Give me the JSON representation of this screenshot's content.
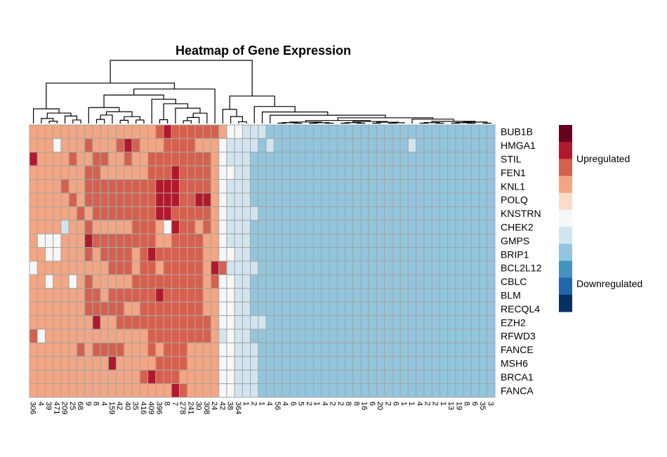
{
  "chart_data": {
    "type": "heatmap",
    "title": "Heatmap of Gene Expression",
    "rows": [
      "BUB1B",
      "HMGA1",
      "STIL",
      "FEN1",
      "KNL1",
      "POLQ",
      "KNSTRN",
      "CHEK2",
      "GMPS",
      "BRIP1",
      "BCL2L12",
      "CBLC",
      "BLM",
      "RECQL4",
      "EZH2",
      "RFWD3",
      "FANCE",
      "MSH6",
      "BRCA1",
      "FANCA"
    ],
    "columns": [
      "306",
      "4",
      "39",
      "471",
      "209",
      "25",
      "68",
      "9",
      "8",
      "4",
      "159",
      "42",
      "40",
      "35",
      "416",
      "409",
      "396",
      "8",
      "7",
      "278",
      "241",
      "30",
      "308",
      "24",
      "42",
      "38",
      "364",
      "1",
      "2",
      "1",
      "4",
      "56",
      "4",
      "6",
      "5",
      "2",
      "1",
      "4",
      "2",
      "2",
      "8",
      "8",
      "16",
      "6",
      "20",
      "2",
      "6",
      "1",
      "1",
      "4",
      "2",
      "2",
      "1",
      "13",
      "19",
      "8",
      "6",
      "35",
      "3"
    ],
    "values": [
      [
        3,
        3,
        3,
        3,
        3,
        3,
        3,
        3,
        3,
        3,
        3,
        3,
        3,
        3,
        3,
        3,
        4,
        5,
        4,
        4,
        4,
        4,
        4,
        4,
        3,
        2,
        2,
        1,
        1,
        1,
        0,
        0,
        0,
        0,
        0,
        0,
        0,
        0,
        0,
        0,
        0,
        0,
        0,
        0,
        0,
        0,
        0,
        0,
        0,
        0,
        0,
        0,
        0,
        0,
        0,
        0,
        0,
        0,
        0
      ],
      [
        3,
        3,
        3,
        2,
        3,
        3,
        3,
        4,
        3,
        3,
        3,
        4,
        5,
        4,
        3,
        3,
        3,
        4,
        4,
        4,
        4,
        3,
        3,
        3,
        2,
        1,
        1,
        1,
        1,
        0,
        1,
        0,
        0,
        0,
        0,
        0,
        0,
        0,
        0,
        0,
        0,
        0,
        0,
        0,
        0,
        0,
        0,
        0,
        1,
        0,
        0,
        0,
        0,
        0,
        0,
        0,
        0,
        0,
        0
      ],
      [
        5,
        3,
        3,
        3,
        3,
        4,
        3,
        3,
        4,
        4,
        3,
        3,
        4,
        3,
        3,
        4,
        4,
        4,
        4,
        4,
        4,
        4,
        4,
        3,
        2,
        1,
        1,
        1,
        0,
        0,
        0,
        0,
        0,
        0,
        0,
        0,
        0,
        0,
        0,
        0,
        0,
        0,
        0,
        0,
        0,
        0,
        0,
        0,
        0,
        0,
        0,
        0,
        0,
        0,
        0,
        0,
        0,
        0,
        0
      ],
      [
        3,
        3,
        3,
        3,
        3,
        3,
        3,
        4,
        4,
        3,
        3,
        3,
        3,
        3,
        3,
        4,
        4,
        4,
        5,
        4,
        4,
        4,
        4,
        3,
        2,
        2,
        1,
        1,
        0,
        0,
        0,
        0,
        0,
        0,
        0,
        0,
        0,
        0,
        0,
        0,
        0,
        0,
        0,
        0,
        0,
        0,
        0,
        0,
        0,
        0,
        0,
        0,
        0,
        0,
        0,
        0,
        0,
        0,
        0
      ],
      [
        3,
        3,
        3,
        3,
        4,
        3,
        3,
        4,
        4,
        4,
        4,
        4,
        4,
        4,
        4,
        4,
        5,
        5,
        5,
        4,
        4,
        4,
        4,
        3,
        2,
        1,
        1,
        1,
        0,
        0,
        0,
        0,
        0,
        0,
        0,
        0,
        0,
        0,
        0,
        0,
        0,
        0,
        0,
        0,
        0,
        0,
        0,
        0,
        0,
        0,
        0,
        0,
        0,
        0,
        0,
        0,
        0,
        0,
        0
      ],
      [
        3,
        3,
        3,
        3,
        3,
        4,
        3,
        4,
        4,
        4,
        4,
        4,
        4,
        4,
        4,
        4,
        5,
        5,
        5,
        4,
        4,
        5,
        5,
        3,
        2,
        1,
        1,
        1,
        0,
        0,
        0,
        0,
        0,
        0,
        0,
        0,
        0,
        0,
        0,
        0,
        0,
        0,
        0,
        0,
        0,
        0,
        0,
        0,
        0,
        0,
        0,
        0,
        0,
        0,
        0,
        0,
        0,
        0,
        0
      ],
      [
        3,
        3,
        3,
        3,
        3,
        3,
        4,
        3,
        4,
        4,
        4,
        4,
        4,
        4,
        4,
        4,
        5,
        5,
        4,
        4,
        4,
        4,
        4,
        3,
        2,
        1,
        1,
        1,
        1,
        0,
        0,
        0,
        0,
        0,
        0,
        0,
        0,
        0,
        0,
        0,
        0,
        0,
        0,
        0,
        0,
        0,
        0,
        0,
        0,
        0,
        0,
        0,
        0,
        0,
        0,
        0,
        0,
        0,
        0
      ],
      [
        3,
        3,
        3,
        3,
        1,
        3,
        3,
        4,
        3,
        3,
        3,
        3,
        3,
        4,
        4,
        4,
        3,
        2,
        5,
        4,
        4,
        3,
        4,
        3,
        2,
        1,
        1,
        1,
        0,
        0,
        0,
        0,
        0,
        0,
        0,
        0,
        0,
        0,
        0,
        0,
        0,
        0,
        0,
        0,
        0,
        0,
        0,
        0,
        0,
        0,
        0,
        0,
        0,
        0,
        0,
        0,
        0,
        0,
        0
      ],
      [
        3,
        2,
        2,
        2,
        3,
        3,
        3,
        5,
        4,
        4,
        4,
        4,
        4,
        4,
        4,
        4,
        3,
        3,
        4,
        4,
        4,
        4,
        3,
        3,
        2,
        1,
        1,
        1,
        0,
        0,
        0,
        0,
        0,
        0,
        0,
        0,
        0,
        0,
        0,
        0,
        0,
        0,
        0,
        0,
        0,
        0,
        0,
        0,
        0,
        0,
        0,
        0,
        0,
        0,
        0,
        0,
        0,
        0,
        0
      ],
      [
        3,
        3,
        2,
        2,
        3,
        3,
        3,
        4,
        3,
        4,
        4,
        4,
        4,
        3,
        4,
        5,
        4,
        4,
        4,
        4,
        4,
        4,
        3,
        3,
        2,
        2,
        1,
        1,
        0,
        0,
        0,
        0,
        0,
        0,
        0,
        0,
        0,
        0,
        0,
        0,
        0,
        0,
        0,
        0,
        0,
        0,
        0,
        0,
        0,
        0,
        0,
        0,
        0,
        0,
        0,
        0,
        0,
        0,
        0
      ],
      [
        2,
        3,
        3,
        3,
        3,
        3,
        3,
        3,
        3,
        3,
        4,
        4,
        4,
        3,
        4,
        4,
        3,
        4,
        4,
        4,
        4,
        4,
        3,
        5,
        4,
        1,
        1,
        1,
        1,
        0,
        0,
        0,
        0,
        0,
        0,
        0,
        0,
        0,
        0,
        0,
        0,
        0,
        0,
        0,
        0,
        0,
        0,
        0,
        0,
        0,
        0,
        0,
        0,
        0,
        0,
        0,
        0,
        0,
        0
      ],
      [
        3,
        3,
        2,
        3,
        3,
        2,
        3,
        4,
        3,
        3,
        3,
        3,
        3,
        4,
        4,
        4,
        4,
        4,
        4,
        4,
        4,
        4,
        3,
        4,
        2,
        2,
        1,
        1,
        0,
        0,
        0,
        0,
        0,
        0,
        0,
        0,
        0,
        0,
        0,
        0,
        0,
        0,
        0,
        0,
        0,
        0,
        0,
        0,
        0,
        0,
        0,
        0,
        0,
        0,
        0,
        0,
        0,
        0,
        0
      ],
      [
        3,
        3,
        3,
        3,
        3,
        3,
        3,
        4,
        4,
        3,
        4,
        4,
        4,
        4,
        4,
        4,
        5,
        4,
        4,
        4,
        4,
        4,
        3,
        3,
        2,
        2,
        1,
        1,
        0,
        0,
        0,
        0,
        0,
        0,
        0,
        0,
        0,
        0,
        0,
        0,
        0,
        0,
        0,
        0,
        0,
        0,
        0,
        0,
        0,
        0,
        0,
        0,
        0,
        0,
        0,
        0,
        0,
        0,
        0
      ],
      [
        3,
        3,
        3,
        3,
        3,
        3,
        3,
        4,
        4,
        4,
        4,
        4,
        3,
        3,
        4,
        4,
        4,
        4,
        4,
        4,
        4,
        4,
        3,
        3,
        2,
        2,
        1,
        1,
        0,
        0,
        0,
        0,
        0,
        0,
        0,
        0,
        0,
        0,
        0,
        0,
        0,
        0,
        0,
        0,
        0,
        0,
        0,
        0,
        0,
        0,
        0,
        0,
        0,
        0,
        0,
        0,
        0,
        0,
        0
      ],
      [
        3,
        3,
        3,
        3,
        3,
        3,
        3,
        3,
        5,
        3,
        3,
        4,
        4,
        4,
        4,
        4,
        4,
        4,
        4,
        4,
        4,
        4,
        4,
        3,
        2,
        2,
        1,
        1,
        1,
        1,
        0,
        0,
        0,
        0,
        0,
        0,
        0,
        0,
        0,
        0,
        0,
        0,
        0,
        0,
        0,
        0,
        0,
        0,
        0,
        0,
        0,
        0,
        0,
        0,
        0,
        0,
        0,
        0,
        0
      ],
      [
        4,
        2,
        3,
        3,
        3,
        3,
        3,
        3,
        3,
        3,
        3,
        3,
        3,
        3,
        3,
        4,
        4,
        4,
        4,
        4,
        4,
        4,
        4,
        3,
        1,
        2,
        1,
        1,
        0,
        0,
        0,
        0,
        0,
        0,
        0,
        0,
        0,
        0,
        0,
        0,
        0,
        0,
        0,
        0,
        0,
        0,
        0,
        0,
        0,
        0,
        0,
        0,
        0,
        0,
        0,
        0,
        0,
        0,
        0
      ],
      [
        3,
        3,
        3,
        3,
        3,
        3,
        4,
        3,
        4,
        4,
        4,
        4,
        3,
        3,
        3,
        4,
        3,
        4,
        4,
        4,
        3,
        3,
        3,
        3,
        2,
        2,
        1,
        1,
        1,
        0,
        0,
        0,
        0,
        0,
        0,
        0,
        0,
        0,
        0,
        0,
        0,
        0,
        0,
        0,
        0,
        0,
        0,
        0,
        0,
        0,
        0,
        0,
        0,
        0,
        0,
        0,
        0,
        0,
        0
      ],
      [
        3,
        3,
        3,
        3,
        3,
        3,
        3,
        3,
        3,
        3,
        5,
        3,
        3,
        3,
        3,
        3,
        4,
        4,
        4,
        4,
        3,
        3,
        3,
        3,
        2,
        2,
        1,
        1,
        1,
        0,
        0,
        0,
        0,
        0,
        0,
        0,
        0,
        0,
        0,
        0,
        0,
        0,
        0,
        0,
        0,
        0,
        0,
        0,
        0,
        0,
        0,
        0,
        0,
        0,
        0,
        0,
        0,
        0,
        0
      ],
      [
        3,
        3,
        3,
        3,
        3,
        3,
        3,
        3,
        3,
        3,
        3,
        3,
        3,
        3,
        4,
        5,
        4,
        4,
        4,
        3,
        3,
        3,
        3,
        3,
        2,
        2,
        1,
        1,
        1,
        0,
        0,
        0,
        0,
        0,
        0,
        0,
        0,
        0,
        0,
        0,
        0,
        0,
        0,
        0,
        0,
        0,
        0,
        0,
        0,
        0,
        0,
        0,
        0,
        0,
        0,
        0,
        0,
        0,
        0
      ],
      [
        3,
        3,
        3,
        3,
        3,
        3,
        3,
        3,
        3,
        3,
        3,
        3,
        3,
        3,
        3,
        3,
        3,
        3,
        5,
        4,
        3,
        3,
        3,
        3,
        2,
        2,
        1,
        1,
        1,
        0,
        0,
        0,
        0,
        0,
        0,
        0,
        0,
        0,
        0,
        0,
        0,
        0,
        0,
        0,
        0,
        0,
        0,
        0,
        0,
        0,
        0,
        0,
        0,
        0,
        0,
        0,
        0,
        0,
        0
      ]
    ],
    "legend": {
      "placement": "right",
      "labels": [
        "Upregulated",
        "Downregulated"
      ],
      "colors": [
        "#67001f",
        "#b2182b",
        "#d6604d",
        "#f4a582",
        "#fddbc7",
        "#f7f7f7",
        "#d1e5f0",
        "#92c5de",
        "#4393c3",
        "#2166ac",
        "#053061"
      ]
    },
    "grid": true
  },
  "palette": {
    "cells": [
      "#92c5de",
      "#d1e5f0",
      "#f7f7f7",
      "#f4a582",
      "#d6604d",
      "#b2182b",
      "#67001f",
      "#4393c3"
    ],
    "cell_border": "#a6a6a6"
  }
}
